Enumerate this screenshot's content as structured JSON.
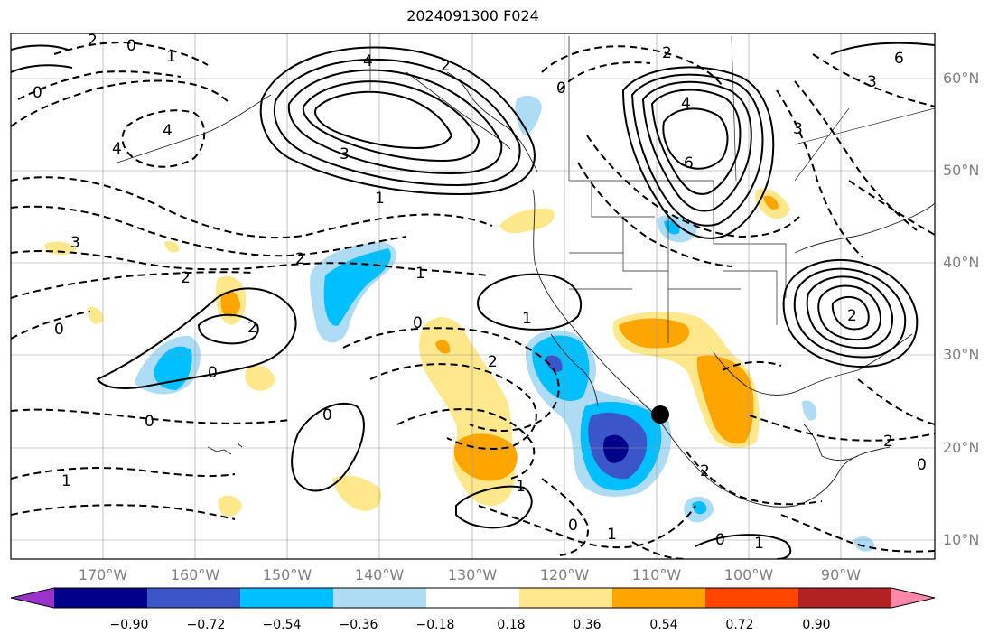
{
  "title": "2024091300 F024",
  "lat_labels": [
    "60°N",
    "50°N",
    "40°N",
    "30°N",
    "20°N",
    "10°N"
  ],
  "lon_labels": [
    "170°W",
    "160°W",
    "150°W",
    "140°W",
    "130°W",
    "120°W",
    "110°W",
    "100°W",
    "90°W"
  ],
  "colorbar": {
    "colors": [
      "#9933cc",
      "#00008b",
      "#3a56c8",
      "#00bfff",
      "#aedcf5",
      "#ffffff",
      "#ffe88c",
      "#ffa500",
      "#ff4500",
      "#b22222",
      "#ff88aa"
    ],
    "tick_labels": [
      "−0.90",
      "−0.72",
      "−0.54",
      "−0.36",
      "−0.18",
      "0.18",
      "0.36",
      "0.54",
      "0.72",
      "0.90"
    ]
  },
  "contour_labels": {
    "positive": [
      "2",
      "4",
      "6",
      "3",
      "1",
      "1",
      "2",
      "0",
      "0",
      "1",
      "4",
      "2",
      "0"
    ],
    "negative": [
      "2",
      "1",
      "4",
      "3",
      "2",
      "2",
      "1",
      "0",
      "2",
      "1",
      "0",
      "2",
      "1",
      "0",
      "3",
      "6",
      "2",
      "0",
      "1",
      "0"
    ]
  },
  "marker": "storm-center"
}
